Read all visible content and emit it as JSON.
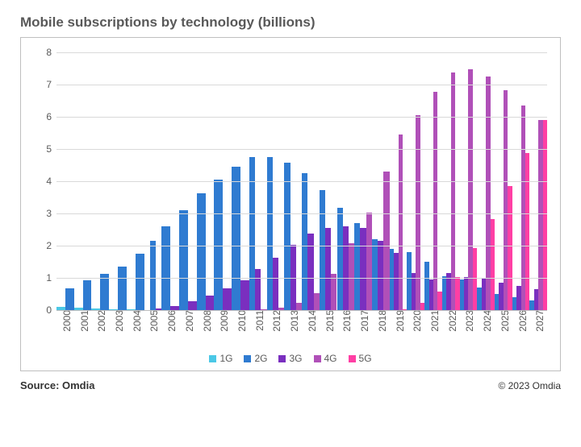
{
  "title": "Mobile subscriptions by technology (billions)",
  "source_label": "Source: Omdia",
  "copyright": "© 2023 Omdia",
  "chart": {
    "type": "bar",
    "background_color": "#ffffff",
    "border_color": "#bfbfbf",
    "axis_font_color": "#595959",
    "grid_color": "#d9d9d9",
    "axis_line_color": "#bfbfbf",
    "ylim": [
      0,
      8
    ],
    "ytick_step": 1,
    "tick_fontsize": 12,
    "years": [
      "2000",
      "2001",
      "2002",
      "2003",
      "2004",
      "2005",
      "2006",
      "2007",
      "2008",
      "2009",
      "2010",
      "2011",
      "2012",
      "2013",
      "2014",
      "2015",
      "2016",
      "2017",
      "2018",
      "2019",
      "2020",
      "2021",
      "2022",
      "2023",
      "2024",
      "2025",
      "2026",
      "2027"
    ],
    "series": [
      {
        "name": "1G",
        "color": "#4bc8e6",
        "values": [
          0.1,
          0.07,
          0.05,
          0.03,
          0.02,
          0.01,
          0,
          0,
          0,
          0,
          0,
          0,
          0,
          0,
          0,
          0,
          0,
          0,
          0,
          0,
          0,
          0,
          0,
          0,
          0,
          0,
          0,
          0
        ]
      },
      {
        "name": "2G",
        "color": "#2f7bd1",
        "values": [
          0.68,
          0.92,
          1.12,
          1.36,
          1.74,
          2.16,
          2.6,
          3.1,
          3.62,
          4.04,
          4.44,
          4.76,
          4.75,
          4.58,
          4.26,
          3.72,
          3.18,
          2.7,
          2.2,
          1.9,
          1.8,
          1.5,
          1.05,
          0.95,
          0.7,
          0.5,
          0.4,
          0.3
        ]
      },
      {
        "name": "3G",
        "color": "#7a2fbf",
        "values": [
          0,
          0,
          0,
          0,
          0,
          0.05,
          0.12,
          0.28,
          0.45,
          0.68,
          0.92,
          1.28,
          1.62,
          2.02,
          2.38,
          2.56,
          2.6,
          2.55,
          2.15,
          1.78,
          1.15,
          0.95,
          1.15,
          1.02,
          0.98,
          0.85,
          0.75,
          0.65
        ]
      },
      {
        "name": "4G",
        "color": "#b050b8",
        "values": [
          0,
          0,
          0,
          0,
          0,
          0,
          0,
          0,
          0,
          0,
          0,
          0.02,
          0.08,
          0.22,
          0.52,
          1.12,
          2.08,
          3.02,
          4.3,
          5.46,
          6.06,
          6.78,
          7.38,
          7.48,
          7.25,
          6.82,
          6.36,
          5.9
        ]
      },
      {
        "name": "5G",
        "color": "#ff3fa4",
        "values": [
          0,
          0,
          0,
          0,
          0,
          0,
          0,
          0,
          0,
          0,
          0,
          0,
          0,
          0,
          0,
          0,
          0,
          0,
          0,
          0.02,
          0.22,
          0.58,
          1.02,
          1.92,
          2.82,
          3.86,
          4.88,
          5.9
        ]
      }
    ]
  }
}
